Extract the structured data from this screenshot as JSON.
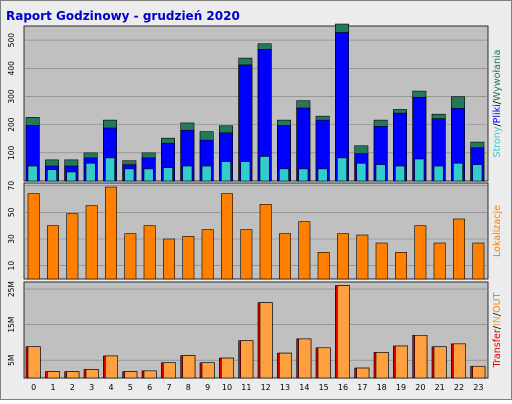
{
  "title": "Raport Godzinowy -  grudzień 2020",
  "colors": {
    "background": "#ececec",
    "plot_bg": "#c0c0c0",
    "title": "#0000cc",
    "hits": "#247a58",
    "files": "#0000ff",
    "pages": "#33cccc",
    "visits": "#ff8000",
    "kbytes": "#e00000",
    "kbytes_in": "#ffa040",
    "kbytes_out": "#ff8000"
  },
  "chart_data": [
    {
      "type": "bar",
      "ylabel_parts": [
        {
          "text": "Strony",
          "color": "#33cccc"
        },
        {
          "text": "/",
          "color": "#000000"
        },
        {
          "text": "Pliki",
          "color": "#0000ff"
        },
        {
          "text": "/",
          "color": "#000000"
        },
        {
          "text": "Wywołania",
          "color": "#247a58"
        }
      ],
      "ylim": [
        0,
        550
      ],
      "yticks": [
        {
          "value": 100,
          "label": "100"
        },
        {
          "value": 200,
          "label": "200"
        },
        {
          "value": 300,
          "label": "300"
        },
        {
          "value": 400,
          "label": "400"
        },
        {
          "value": 500,
          "label": "500"
        }
      ],
      "categories": [
        "0",
        "1",
        "2",
        "3",
        "4",
        "5",
        "6",
        "7",
        "8",
        "9",
        "10",
        "11",
        "12",
        "13",
        "14",
        "15",
        "16",
        "17",
        "18",
        "19",
        "20",
        "21",
        "22",
        "23"
      ],
      "series": [
        {
          "name": "Wywołania",
          "values": [
            226,
            75,
            75,
            100,
            216,
            72,
            100,
            152,
            206,
            175,
            196,
            436,
            487,
            216,
            285,
            230,
            557,
            125,
            216,
            254,
            319,
            237,
            299,
            138
          ]
        },
        {
          "name": "Pliki",
          "values": [
            197,
            53,
            53,
            82,
            188,
            58,
            82,
            134,
            180,
            145,
            171,
            412,
            467,
            197,
            259,
            216,
            527,
            97,
            194,
            241,
            297,
            221,
            258,
            118
          ]
        },
        {
          "name": "Strony",
          "values": [
            53,
            40,
            32,
            63,
            82,
            43,
            43,
            47,
            53,
            53,
            69,
            69,
            87,
            43,
            43,
            43,
            82,
            63,
            58,
            53,
            78,
            53,
            63,
            58
          ]
        }
      ]
    },
    {
      "type": "bar",
      "ylabel_parts": [
        {
          "text": "Lokalizacje",
          "color": "#ff8000"
        }
      ],
      "ylim": [
        0,
        72
      ],
      "yticks": [
        {
          "value": 10,
          "label": "10"
        },
        {
          "value": 30,
          "label": "30"
        },
        {
          "value": 50,
          "label": "50"
        },
        {
          "value": 70,
          "label": "70"
        }
      ],
      "categories": [
        "0",
        "1",
        "2",
        "3",
        "4",
        "5",
        "6",
        "7",
        "8",
        "9",
        "10",
        "11",
        "12",
        "13",
        "14",
        "15",
        "16",
        "17",
        "18",
        "19",
        "20",
        "21",
        "22",
        "23"
      ],
      "series": [
        {
          "name": "Lokalizacje",
          "values": [
            64,
            40,
            49,
            55,
            69,
            34,
            40,
            30,
            32,
            37,
            64,
            37,
            56,
            34,
            43,
            20,
            34,
            33,
            27,
            20,
            40,
            27,
            45,
            27
          ]
        }
      ]
    },
    {
      "type": "bar",
      "ylabel_parts": [
        {
          "text": "Transfer",
          "color": "#e00000"
        },
        {
          "text": "/",
          "color": "#000000"
        },
        {
          "text": "IN",
          "color": "#ffa040"
        },
        {
          "text": "/",
          "color": "#000000"
        },
        {
          "text": "OUT",
          "color": "#ff8000"
        }
      ],
      "ylim": [
        0,
        27
      ],
      "ylim_unit": "M",
      "yticks": [
        {
          "value": 5,
          "label": "5M"
        },
        {
          "value": 15,
          "label": "15M"
        },
        {
          "value": 25,
          "label": "25M"
        }
      ],
      "categories": [
        "0",
        "1",
        "2",
        "3",
        "4",
        "5",
        "6",
        "7",
        "8",
        "9",
        "10",
        "11",
        "12",
        "13",
        "14",
        "15",
        "16",
        "17",
        "18",
        "19",
        "20",
        "21",
        "22",
        "23"
      ],
      "series": [
        {
          "name": "Transfer",
          "values": [
            8.8,
            1.8,
            1.8,
            2.4,
            6.2,
            1.8,
            2.0,
            4.3,
            6.3,
            4.3,
            5.6,
            10.5,
            21.2,
            7.0,
            11.0,
            8.5,
            26.0,
            2.8,
            7.2,
            9.0,
            12.0,
            8.8,
            9.6,
            3.3
          ]
        },
        {
          "name": "OUT",
          "values": [
            8.8,
            1.8,
            1.8,
            2.4,
            6.2,
            1.8,
            2.0,
            4.3,
            6.3,
            4.3,
            5.6,
            10.5,
            21.2,
            7.0,
            11.0,
            8.5,
            26.0,
            2.8,
            7.2,
            9.0,
            12.0,
            8.8,
            9.6,
            3.3
          ]
        }
      ]
    }
  ]
}
